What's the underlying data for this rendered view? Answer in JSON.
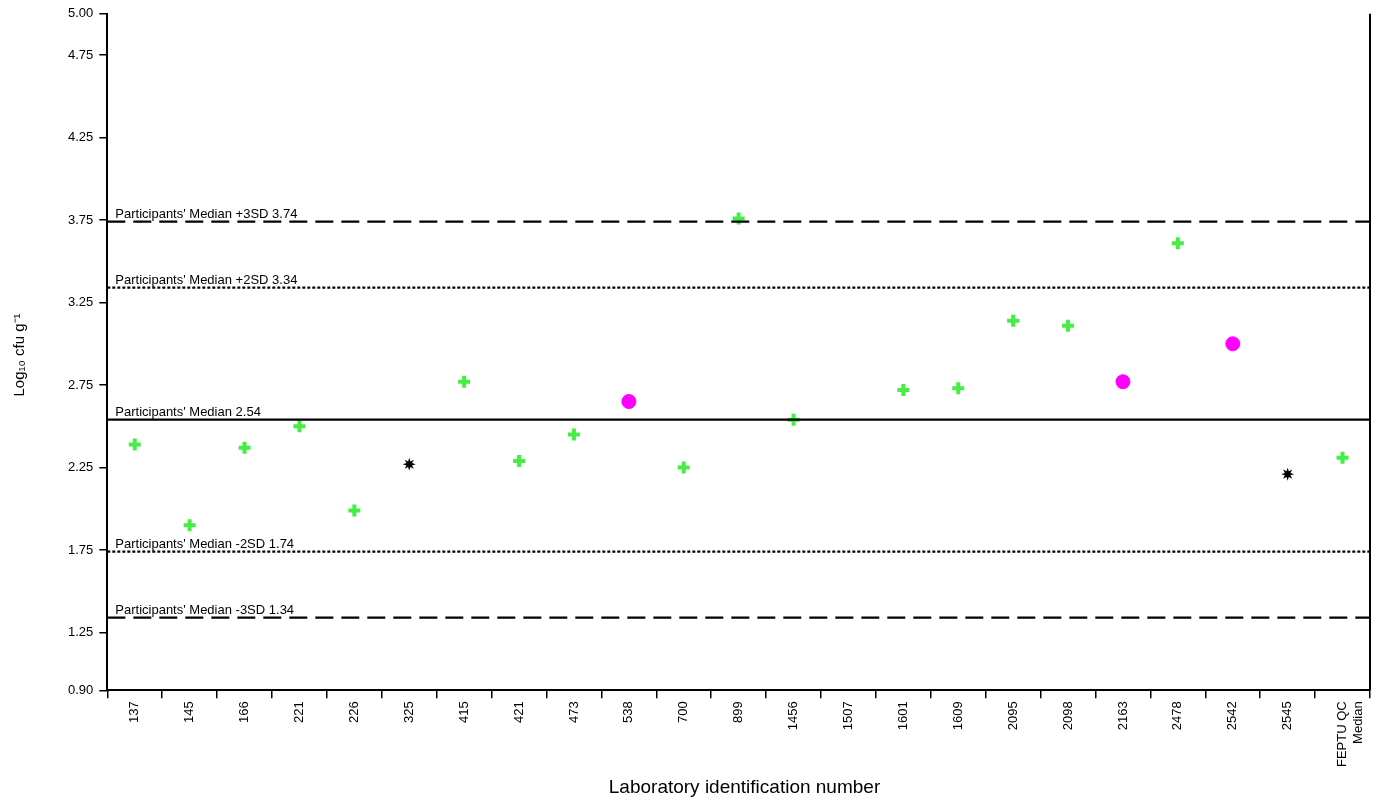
{
  "chart_data": {
    "type": "scatter",
    "xlabel": "Laboratory identification number",
    "ylabel": "Log₁₀ cfu g⁻¹",
    "categories": [
      "137",
      "145",
      "166",
      "221",
      "226",
      "325",
      "415",
      "421",
      "473",
      "538",
      "700",
      "899",
      "1456",
      "1507",
      "1601",
      "1609",
      "2095",
      "2098",
      "2163",
      "2478",
      "2542",
      "2545",
      "FEPTU QC Median"
    ],
    "series": [
      {
        "color": "#44ee44",
        "marker": "cross",
        "values": [
          2.39,
          1.9,
          2.37,
          2.5,
          1.99,
          null,
          2.77,
          2.29,
          2.45,
          null,
          2.25,
          3.76,
          2.54,
          null,
          2.72,
          2.73,
          3.14,
          3.11,
          null,
          3.61,
          null,
          null,
          2.31
        ]
      },
      {
        "color": "#ff00ff",
        "marker": "circle",
        "values": [
          null,
          null,
          null,
          null,
          null,
          null,
          null,
          null,
          null,
          2.65,
          null,
          null,
          null,
          null,
          null,
          null,
          null,
          null,
          2.77,
          null,
          3.0,
          null,
          null
        ]
      },
      {
        "color": "#000000",
        "marker": "star",
        "values": [
          null,
          null,
          null,
          null,
          null,
          2.27,
          null,
          null,
          null,
          null,
          null,
          null,
          null,
          null,
          null,
          null,
          null,
          null,
          null,
          null,
          null,
          2.21,
          null
        ]
      }
    ],
    "ylim": [
      0.9,
      5.0
    ],
    "yticks": [
      {
        "value": 0.9,
        "label": "0.90"
      },
      {
        "value": 1.25,
        "label": "1.25"
      },
      {
        "value": 1.75,
        "label": "1.75"
      },
      {
        "value": 2.25,
        "label": "2.25"
      },
      {
        "value": 2.75,
        "label": "2.75"
      },
      {
        "value": 3.25,
        "label": "3.25"
      },
      {
        "value": 3.75,
        "label": "3.75"
      },
      {
        "value": 4.25,
        "label": "4.25"
      },
      {
        "value": 4.75,
        "label": "4.75"
      },
      {
        "value": 5.0,
        "label": "5.00"
      }
    ],
    "ref_lines": [
      {
        "axis": "y",
        "value": 3.74,
        "label": "Participants' Median +3SD 3.74",
        "line_style": "dashed",
        "color": "#000000"
      },
      {
        "axis": "y",
        "value": 3.34,
        "label": "Participants' Median +2SD 3.34",
        "line_style": "dotted",
        "color": "#000000"
      },
      {
        "axis": "y",
        "value": 2.54,
        "label": "Participants' Median 2.54",
        "line_style": "solid",
        "color": "#000000"
      },
      {
        "axis": "y",
        "value": 1.74,
        "label": "Participants' Median -2SD 1.74",
        "line_style": "dotted",
        "color": "#000000"
      },
      {
        "axis": "y",
        "value": 1.34,
        "label": "Participants' Median -3SD 1.34",
        "line_style": "dashed",
        "color": "#000000"
      }
    ],
    "grid": false,
    "legend": false
  }
}
